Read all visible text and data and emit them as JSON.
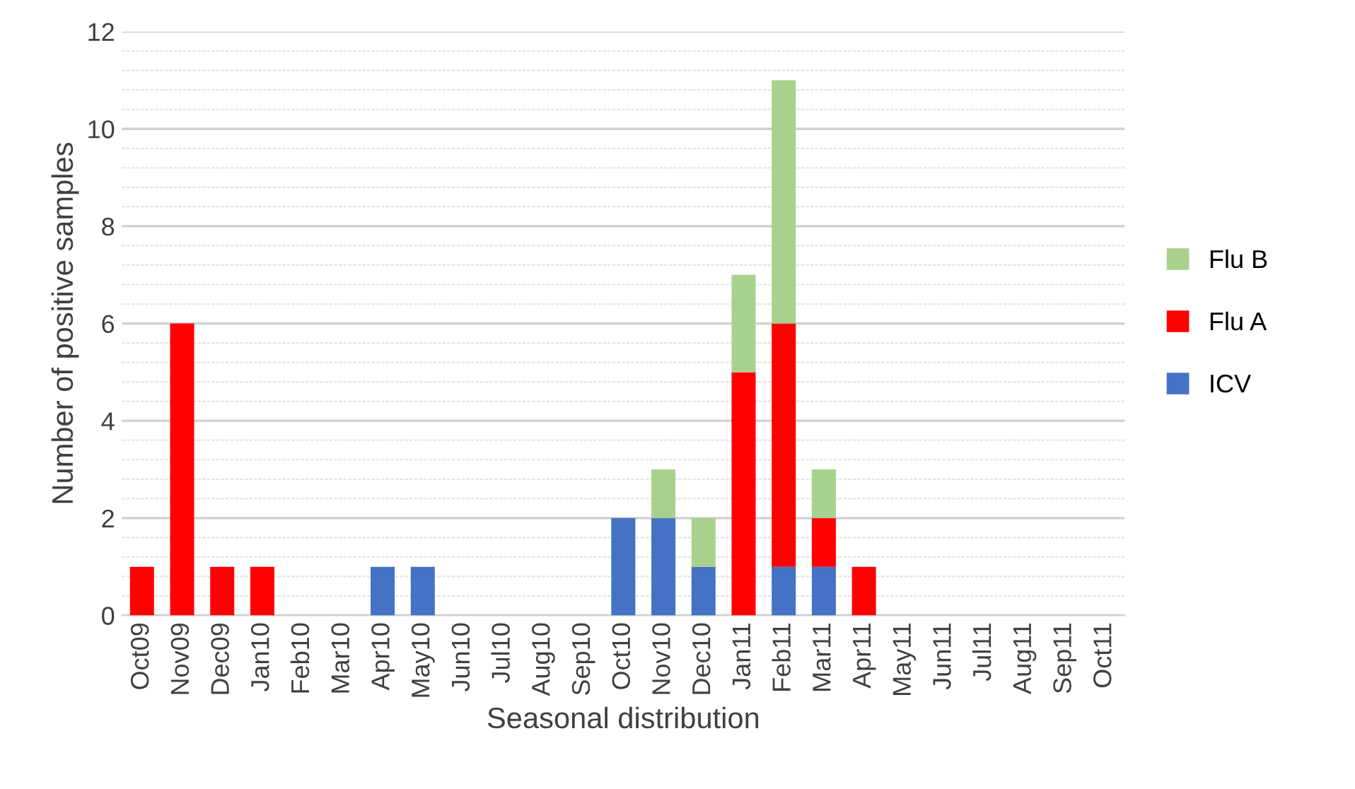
{
  "chart_data": {
    "type": "bar",
    "stacked": true,
    "xlabel": "Seasonal distribution",
    "ylabel": "Number of positive samples",
    "categories": [
      "Oct09",
      "Nov09",
      "Dec09",
      "Jan10",
      "Feb10",
      "Mar10",
      "Apr10",
      "May10",
      "Jun10",
      "Jul10",
      "Aug10",
      "Sep10",
      "Oct10",
      "Nov10",
      "Dec10",
      "Jan11",
      "Feb11",
      "Mar11",
      "Apr11",
      "May11",
      "Jun11",
      "Jul11",
      "Aug11",
      "Sep11",
      "Oct11"
    ],
    "series": [
      {
        "name": "ICV",
        "color": "#4472c4",
        "values": [
          0,
          0,
          0,
          0,
          0,
          0,
          1,
          1,
          0,
          0,
          0,
          0,
          2,
          2,
          1,
          0,
          1,
          1,
          0,
          0,
          0,
          0,
          0,
          0,
          0
        ]
      },
      {
        "name": "Flu A",
        "color": "#ff0000",
        "values": [
          1,
          6,
          1,
          1,
          0,
          0,
          0,
          0,
          0,
          0,
          0,
          0,
          0,
          0,
          0,
          5,
          5,
          1,
          1,
          0,
          0,
          0,
          0,
          0,
          0
        ]
      },
      {
        "name": "Flu B",
        "color": "#a9d18e",
        "values": [
          0,
          0,
          0,
          0,
          0,
          0,
          0,
          0,
          0,
          0,
          0,
          0,
          0,
          1,
          1,
          2,
          5,
          1,
          0,
          0,
          0,
          0,
          0,
          0,
          0
        ]
      }
    ],
    "ylim": [
      0,
      12
    ],
    "yticks": [
      0,
      2,
      4,
      6,
      8,
      10,
      12
    ],
    "grid": "y",
    "legend": "right"
  }
}
